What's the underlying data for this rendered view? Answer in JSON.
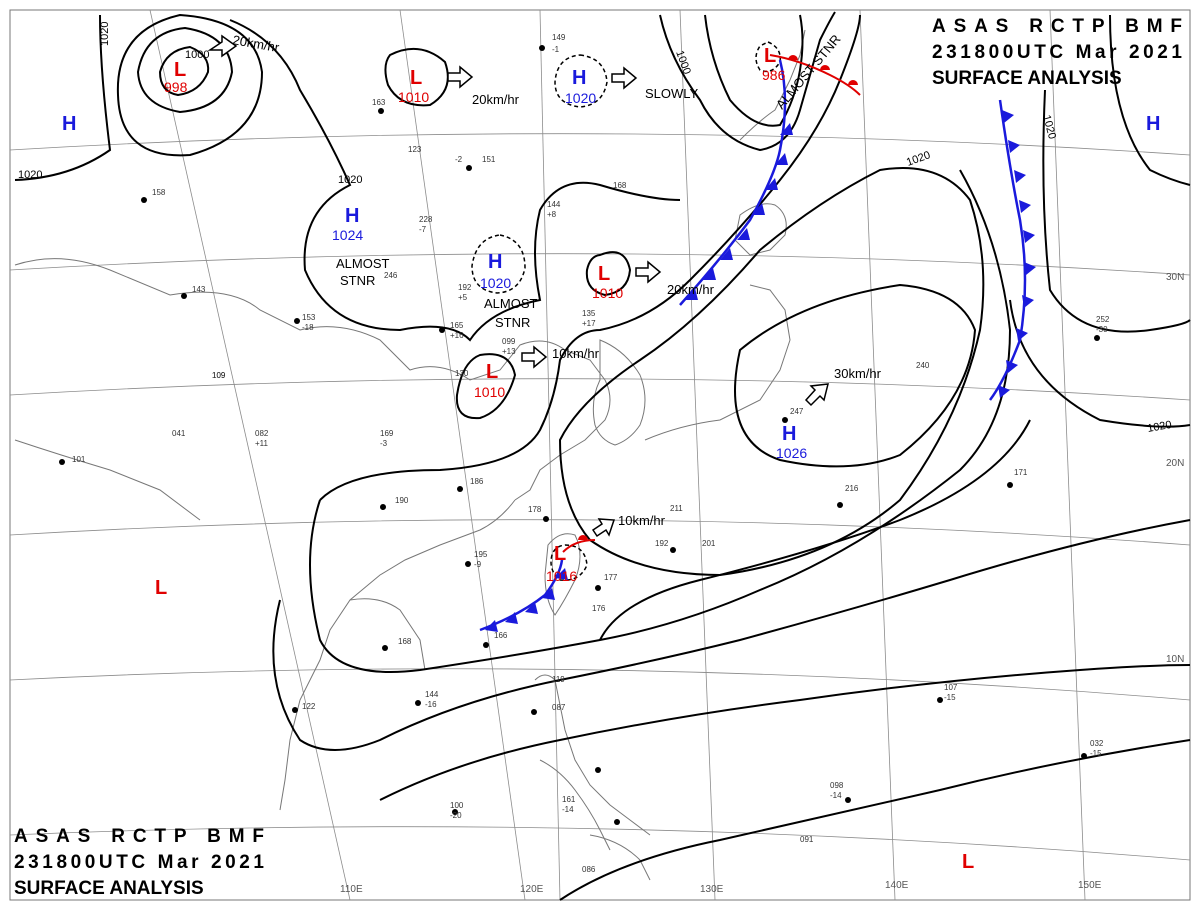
{
  "header_top": [
    "ASAS RCTP BMF",
    "231800UTC Mar 2021",
    "SURFACE ANALYSIS"
  ],
  "header_bottom": [
    "ASAS RCTP BMF",
    "231800UTC Mar 2021",
    "SURFACE ANALYSIS"
  ],
  "grid": {
    "longitudes": [
      "110E",
      "120E",
      "130E",
      "140E",
      "150E"
    ],
    "latitudes": [
      "30N",
      "20N",
      "10N"
    ]
  },
  "isobar_labels": [
    "1020",
    "1000",
    "1020",
    "1020",
    "1000",
    "1020",
    "1020",
    "1020"
  ],
  "pressure_centers": [
    {
      "type": "L",
      "value": "998",
      "color": "#e00000"
    },
    {
      "type": "L",
      "value": "1010",
      "color": "#e00000"
    },
    {
      "type": "H",
      "value": "1020",
      "color": "#1a1adc"
    },
    {
      "type": "L",
      "value": "986",
      "color": "#e00000"
    },
    {
      "type": "H",
      "value": "1024",
      "color": "#1a1adc"
    },
    {
      "type": "H",
      "value": "1020",
      "color": "#1a1adc"
    },
    {
      "type": "L",
      "value": "1010",
      "color": "#e00000"
    },
    {
      "type": "L",
      "value": "1010",
      "color": "#e00000"
    },
    {
      "type": "H",
      "value": "1026",
      "color": "#1a1adc"
    },
    {
      "type": "L",
      "value": "1016",
      "color": "#e00000"
    },
    {
      "type": "H",
      "value": "",
      "color": "#1a1adc"
    },
    {
      "type": "H",
      "value": "",
      "color": "#1a1adc"
    },
    {
      "type": "L",
      "value": "",
      "color": "#e00000"
    },
    {
      "type": "L",
      "value": "",
      "color": "#e00000"
    }
  ],
  "motion_labels": [
    "20km/hr",
    "20km/hr",
    "SLOWLY",
    "ALMOST STNR",
    "ALMOST",
    "STNR",
    "20km/hr",
    "ALMOST",
    "STNR",
    "10km/hr",
    "30km/hr",
    "10km/hr"
  ],
  "station_samples": [
    "149",
    "-1",
    "163",
    "123",
    "-2",
    "151",
    "168",
    "144",
    "+8",
    "228",
    "-7",
    "246",
    "192",
    "+5",
    "153",
    "-18",
    "165",
    "+16",
    "099",
    "+13",
    "135",
    "+17",
    "130",
    "169",
    "-3",
    "190",
    "186",
    "195",
    "-9",
    "178",
    "211",
    "192",
    "201",
    "177",
    "176",
    "166",
    "168",
    "122",
    "144",
    "-16",
    "119",
    "087",
    "100",
    "-20",
    "161",
    "-14",
    "086",
    "101",
    "109",
    "082",
    "+11",
    "041",
    "158",
    "143",
    "109",
    "216",
    "171",
    "252",
    "-30",
    "247",
    "240",
    "107",
    "-15",
    "098",
    "-14",
    "091",
    "032",
    "-15"
  ],
  "colors": {
    "low": "#e00000",
    "high": "#1a1adc",
    "front_cold": "#1a1adc",
    "front_warm": "#e00000",
    "isobar": "#000000",
    "coast": "#777777"
  }
}
